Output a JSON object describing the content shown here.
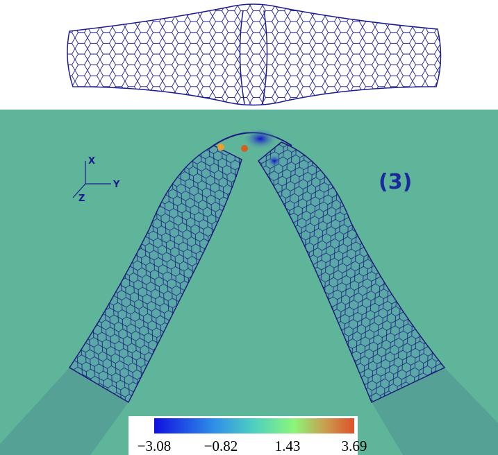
{
  "axes": {
    "x": "X",
    "y": "Y",
    "z": "Z"
  },
  "panel_label": "(3)",
  "colorbar": {
    "ticks": [
      "−3.08",
      "−0.82",
      "1.43",
      "3.69"
    ]
  }
}
